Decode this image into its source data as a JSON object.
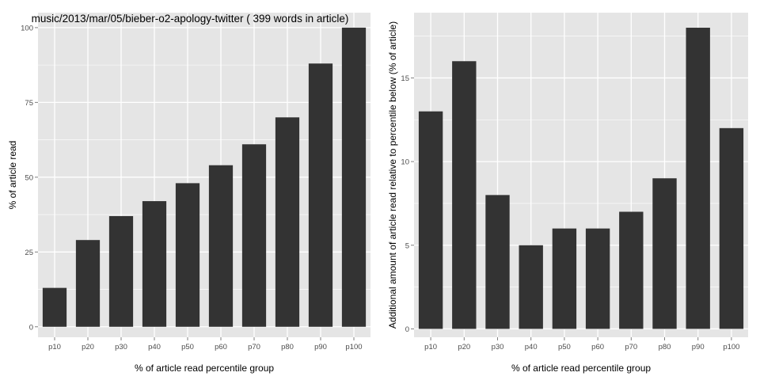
{
  "chart_data": [
    {
      "type": "bar",
      "title": "music/2013/mar/05/bieber-o2-apology-twitter ( 399 words in article)",
      "xlabel": "% of article read percentile group",
      "ylabel": "% of article read",
      "categories": [
        "p10",
        "p20",
        "p30",
        "p40",
        "p50",
        "p60",
        "p70",
        "p80",
        "p90",
        "p100"
      ],
      "values": [
        13,
        29,
        37,
        42,
        48,
        54,
        61,
        70,
        88,
        100
      ],
      "ylim": [
        -3.5,
        105
      ],
      "yticks": [
        0,
        25,
        50,
        75,
        100
      ],
      "grid": true,
      "bar_color": "#333333",
      "panel_color": "#e5e5e5",
      "grid_color": "#ffffff"
    },
    {
      "type": "bar",
      "title": "",
      "xlabel": "% of article read percentile group",
      "ylabel": "Additional amount of article read relative to percentile below (% of article)",
      "categories": [
        "p10",
        "p20",
        "p30",
        "p40",
        "p50",
        "p60",
        "p70",
        "p80",
        "p90",
        "p100"
      ],
      "values": [
        13,
        16,
        8,
        5,
        6,
        6,
        7,
        9,
        18,
        12
      ],
      "ylim": [
        -0.5,
        18.9
      ],
      "yticks": [
        0,
        5,
        10,
        15
      ],
      "grid": true,
      "bar_color": "#333333",
      "panel_color": "#e5e5e5",
      "grid_color": "#ffffff"
    }
  ]
}
